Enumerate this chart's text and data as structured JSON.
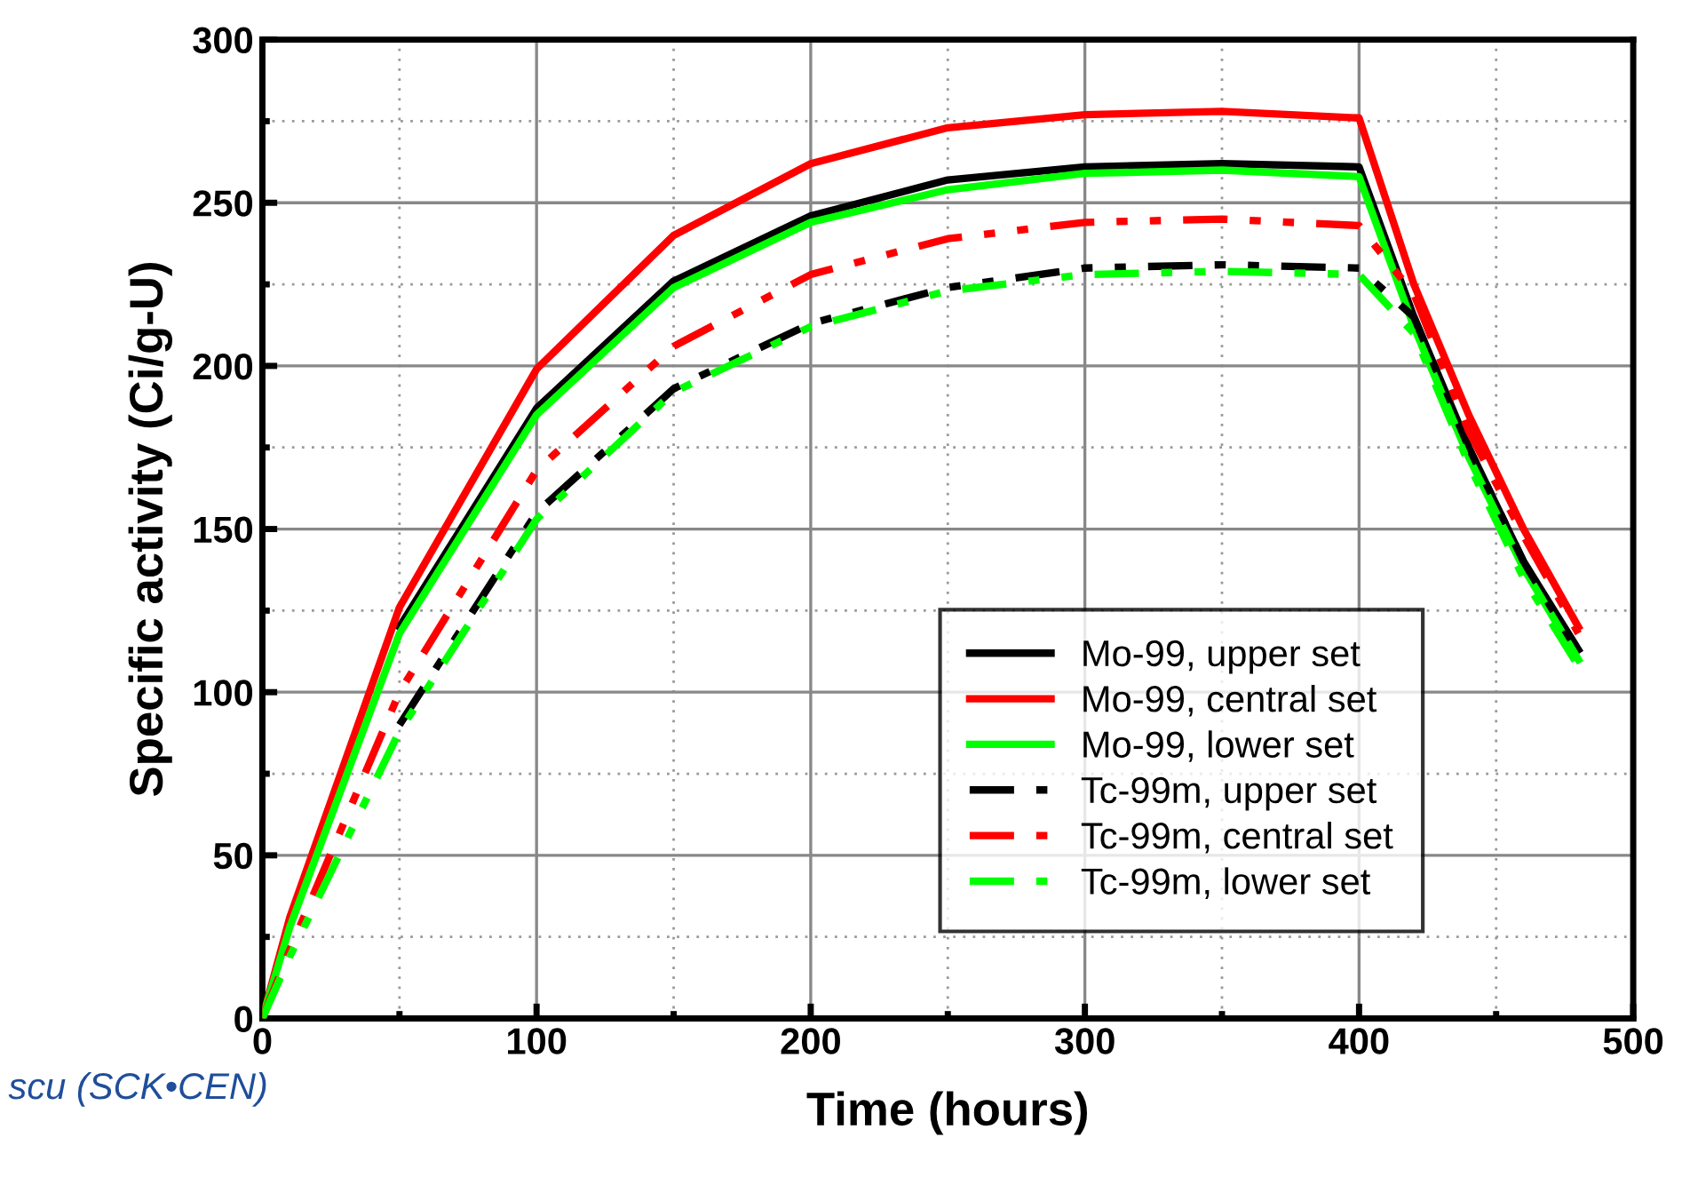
{
  "chart_data": {
    "type": "line",
    "xlabel": "Time (hours)",
    "ylabel": "Specific activity (Ci/g-U)",
    "x": [
      0,
      10,
      50,
      100,
      150,
      200,
      250,
      300,
      350,
      400,
      420,
      440,
      460,
      480
    ],
    "series": [
      {
        "name": "Mo-99, upper set",
        "color": "#000000",
        "line_style": "solid",
        "values": [
          0,
          null,
          120,
          187,
          226,
          246,
          257,
          261,
          262,
          261,
          215,
          175,
          140,
          113
        ]
      },
      {
        "name": "Mo-99, central set",
        "color": "#ff0000",
        "line_style": "solid",
        "values": [
          0,
          31,
          126,
          199,
          240,
          262,
          273,
          277,
          278,
          276,
          225,
          185,
          150,
          120
        ]
      },
      {
        "name": "Mo-99, lower set",
        "color": "#00ff00",
        "line_style": "solid",
        "values": [
          0,
          28,
          118,
          185,
          224,
          244,
          254,
          259,
          260,
          258,
          212,
          172,
          138,
          110
        ]
      },
      {
        "name": "Tc-99m, upper set",
        "color": "#000000",
        "line_style": "dashed",
        "values": [
          null,
          null,
          90,
          155,
          193,
          213,
          224,
          230,
          231,
          230,
          215,
          175,
          140,
          112
        ]
      },
      {
        "name": "Tc-99m, central set",
        "color": "#ff0000",
        "line_style": "dashed",
        "values": [
          0,
          21,
          100,
          168,
          206,
          228,
          239,
          244,
          245,
          243,
          222,
          180,
          148,
          118
        ]
      },
      {
        "name": "Tc-99m, lower set",
        "color": "#00ff00",
        "line_style": "dashed",
        "values": [
          0,
          19,
          88,
          153,
          192,
          212,
          223,
          228,
          229,
          228,
          210,
          170,
          135,
          108
        ]
      }
    ],
    "xlim": [
      0,
      500
    ],
    "xticks": [
      0,
      {
        "value": 50,
        "label": null
      },
      100,
      {
        "value": 150,
        "label": null
      },
      200,
      {
        "value": 250,
        "label": null
      },
      300,
      {
        "value": 350,
        "label": null
      },
      400,
      {
        "value": 450,
        "label": null
      },
      500
    ],
    "ylim": [
      0,
      300
    ],
    "yticks": [
      0,
      {
        "value": 25,
        "label": null
      },
      50,
      {
        "value": 75,
        "label": null
      },
      100,
      {
        "value": 125,
        "label": null
      },
      150,
      {
        "value": 175,
        "label": null
      },
      200,
      {
        "value": 225,
        "label": null
      },
      250,
      {
        "value": 275,
        "label": null
      },
      300
    ],
    "grid": true,
    "legend": "lower right",
    "marker": "none",
    "annotations": [
      "scu (SCK•CEN)"
    ]
  }
}
